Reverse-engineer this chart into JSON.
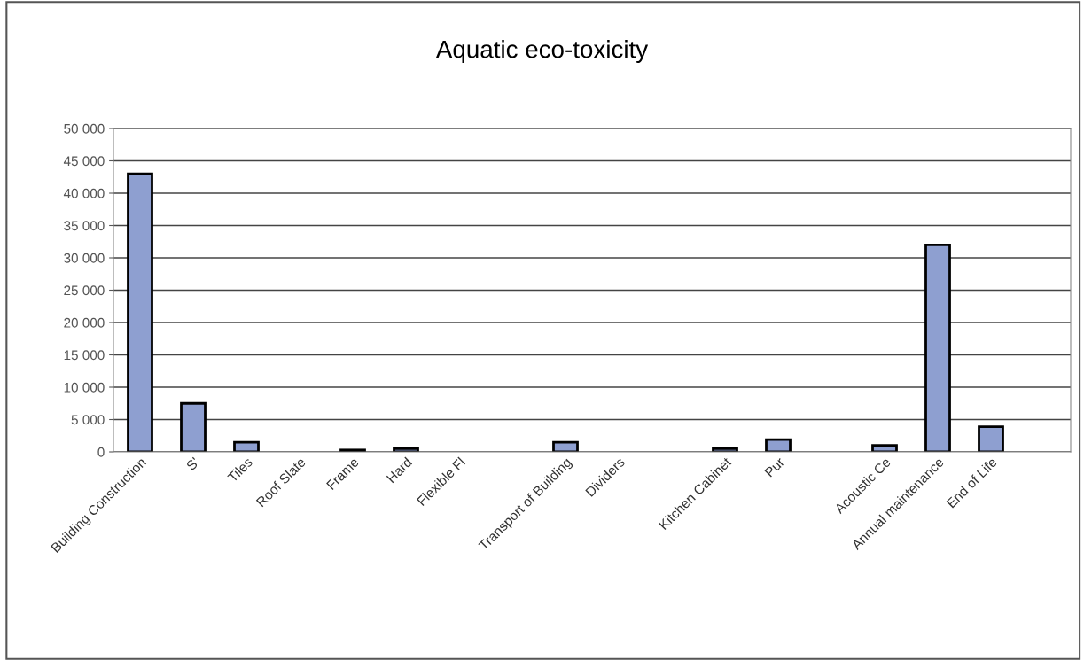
{
  "chart_data": {
    "type": "bar",
    "title": "Aquatic eco-toxicity",
    "categories": [
      "Building Construction",
      "S'",
      "Tiles",
      "Roof Slate",
      "Frame",
      "Hard",
      "Flexible Fl",
      null,
      "Transport of Building",
      "Dividers",
      null,
      "Kitchen Cabinet",
      "Pur",
      null,
      "Acoustic Ce",
      "Annual maintenance",
      "End of Life",
      null
    ],
    "values": [
      43000,
      7500,
      1500,
      null,
      300,
      500,
      null,
      null,
      1500,
      null,
      null,
      500,
      1900,
      null,
      1000,
      32000,
      3900,
      null
    ],
    "color": "#8e9fd0",
    "ylim": [
      0,
      50000
    ],
    "yticks": [
      {
        "value": 0,
        "label": "0"
      },
      {
        "value": 5000,
        "label": "5 000"
      },
      {
        "value": 10000,
        "label": "10 000"
      },
      {
        "value": 15000,
        "label": "15 000"
      },
      {
        "value": 20000,
        "label": "20 000"
      },
      {
        "value": 25000,
        "label": "25 000"
      },
      {
        "value": 30000,
        "label": "30 000"
      },
      {
        "value": 35000,
        "label": "35 000"
      },
      {
        "value": 40000,
        "label": "40 000"
      },
      {
        "value": 45000,
        "label": "45 000"
      },
      {
        "value": 50000,
        "label": "50 000"
      }
    ],
    "grid": "y"
  }
}
